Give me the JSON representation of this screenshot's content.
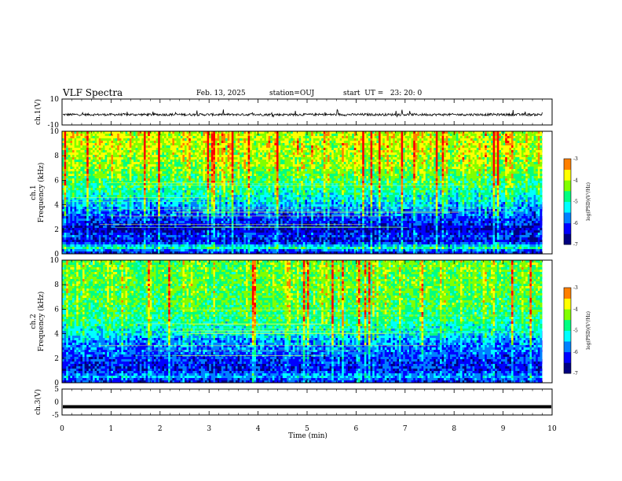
{
  "header": {
    "title": "VLF Spectra",
    "date": "Feb. 13, 2025",
    "station": "station=OUJ",
    "start": "start  UT =   23: 20: 0"
  },
  "chart_data": [
    {
      "type": "line",
      "panel": "ch1-waveform",
      "ylabel": "ch.1(V)",
      "ylim": [
        -10,
        10
      ],
      "y_ticks": [
        "10",
        "-10"
      ],
      "x_range_min": [
        0,
        10
      ],
      "signal": "noise centred near -2 V, amplitude roughly 1 V, occasional spikes to about 1 V"
    },
    {
      "type": "heatmap",
      "panel": "ch1-spectrogram",
      "ylabel": "ch.1\nFrequency (kHz)",
      "ylabel_line1": "ch.1",
      "ylabel_line2": "Frequency (kHz)",
      "ylim": [
        0,
        10
      ],
      "y_ticks": [
        "0",
        "2",
        "4",
        "6",
        "8",
        "10"
      ],
      "data_end_min": 9.8,
      "freq_profile_log_psd": [
        {
          "f_khz": 0.2,
          "v": -6.4
        },
        {
          "f_khz": 0.5,
          "v": -5.0
        },
        {
          "f_khz": 1.0,
          "v": -6.6
        },
        {
          "f_khz": 1.5,
          "v": -6.2
        },
        {
          "f_khz": 2.0,
          "v": -6.7
        },
        {
          "f_khz": 2.5,
          "v": -6.3
        },
        {
          "f_khz": 3.0,
          "v": -6.2
        },
        {
          "f_khz": 3.5,
          "v": -6.1
        },
        {
          "f_khz": 4.0,
          "v": -5.7
        },
        {
          "f_khz": 5.0,
          "v": -5.2
        },
        {
          "f_khz": 6.0,
          "v": -4.8
        },
        {
          "f_khz": 7.0,
          "v": -4.5
        },
        {
          "f_khz": 8.0,
          "v": -4.3
        },
        {
          "f_khz": 9.0,
          "v": -4.2
        },
        {
          "f_khz": 10.0,
          "v": -4.2
        }
      ],
      "colorbar": {
        "label": "log(PSD)(V²/Hz)",
        "range": [
          -7,
          -3
        ],
        "ticks": [
          "-3",
          "-4",
          "-5",
          "-6",
          "-7"
        ]
      }
    },
    {
      "type": "heatmap",
      "panel": "ch2-spectrogram",
      "ylabel": "ch.2\nFrequency (kHz)",
      "ylabel_line1": "ch.2",
      "ylabel_line2": "Frequency (kHz)",
      "ylim": [
        0,
        10
      ],
      "y_ticks": [
        "0",
        "2",
        "4",
        "6",
        "8",
        "10"
      ],
      "data_end_min": 9.8,
      "freq_profile_log_psd": [
        {
          "f_khz": 0.2,
          "v": -6.3
        },
        {
          "f_khz": 0.5,
          "v": -5.6
        },
        {
          "f_khz": 1.0,
          "v": -6.4
        },
        {
          "f_khz": 1.5,
          "v": -6.3
        },
        {
          "f_khz": 2.0,
          "v": -6.2
        },
        {
          "f_khz": 2.5,
          "v": -6.0
        },
        {
          "f_khz": 3.0,
          "v": -5.9
        },
        {
          "f_khz": 3.5,
          "v": -5.8
        },
        {
          "f_khz": 4.0,
          "v": -5.4
        },
        {
          "f_khz": 5.0,
          "v": -5.0
        },
        {
          "f_khz": 6.0,
          "v": -4.8
        },
        {
          "f_khz": 7.0,
          "v": -4.7
        },
        {
          "f_khz": 8.0,
          "v": -4.6
        },
        {
          "f_khz": 9.0,
          "v": -4.6
        },
        {
          "f_khz": 10.0,
          "v": -4.6
        }
      ],
      "colorbar": {
        "label": "log(PSD)(V²/Hz)",
        "range": [
          -7,
          -3
        ],
        "ticks": [
          "-3",
          "-4",
          "-5",
          "-6",
          "-7"
        ]
      }
    },
    {
      "type": "line",
      "panel": "ch3-waveform",
      "ylabel": "ch.3(V)",
      "ylim": [
        -5,
        5
      ],
      "y_ticks": [
        "5",
        "0",
        "-5"
      ],
      "constant_value": -1.8
    }
  ],
  "x_axis": {
    "xlabel": "Time (min)",
    "range": [
      0,
      10
    ],
    "ticks": [
      "0",
      "1",
      "2",
      "3",
      "4",
      "5",
      "6",
      "7",
      "8",
      "9",
      "10"
    ]
  },
  "colormap": [
    "#000080",
    "#0000ff",
    "#0080ff",
    "#00ffff",
    "#00ff80",
    "#80ff00",
    "#ffff00",
    "#ff8000",
    "#ff0000",
    "#ffffff"
  ]
}
